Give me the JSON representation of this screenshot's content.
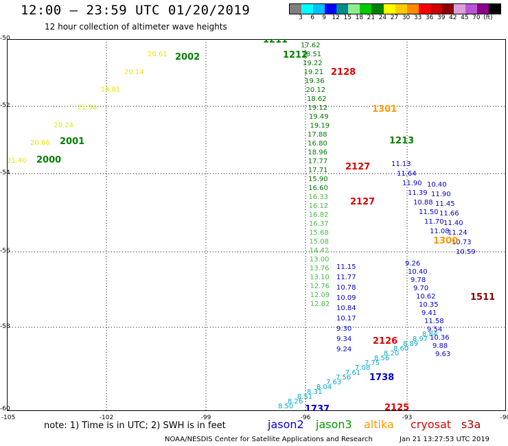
{
  "title": "12:00 – 23:59 UTC 01/20/2019",
  "subtitle": "12 hour collection of altimeter wave heights",
  "legend": {
    "colors": [
      "#808080",
      "#00ffff",
      "#00bfff",
      "#0000ff",
      "#008c8c",
      "#90ee90",
      "#00cc00",
      "#008000",
      "#ffff00",
      "#ffcc00",
      "#ff8c00",
      "#ff0000",
      "#cc0000",
      "#8b0000",
      "#dda0dd",
      "#ba55d3",
      "#8b008b",
      "#000000"
    ],
    "labels": [
      "3",
      "6",
      "9",
      "12",
      "15",
      "18",
      "21",
      "24",
      "27",
      "30",
      "33",
      "36",
      "39",
      "42",
      "45",
      "70",
      "(ft)"
    ]
  },
  "axes": {
    "y_labels": [
      "-50",
      "-52",
      "-54",
      "-56",
      "-58",
      "-60"
    ],
    "x_labels": [
      "-105",
      "-102",
      "-99",
      "-96",
      "-93",
      "-90"
    ]
  },
  "note": "note: 1) Time is in UTC; 2) SWH is in feet",
  "satellites": [
    {
      "name": "jason2",
      "color": "#0000cc"
    },
    {
      "name": "jason3",
      "color": "#009900"
    },
    {
      "name": "altika",
      "color": "#ff9900"
    },
    {
      "name": "cryosat",
      "color": "#dd0000"
    },
    {
      "name": "s3a",
      "color": "#aa0000"
    }
  ],
  "credit": "NOAA/NESDIS Center for Satellite Applications and Research",
  "timestamp": "Jan 21 13:27:53 UTC 2019",
  "tracks": [
    {
      "name": "altika-track-2000-2002",
      "color": "#e6e600",
      "time_labels": [
        {
          "text": "2002",
          "color": "#008000"
        },
        {
          "text": "2001",
          "color": "#008000"
        },
        {
          "text": "2000",
          "color": "#008000"
        }
      ],
      "values": [
        "20.61",
        "20.14",
        "19.81",
        "21.38",
        "20.24",
        "20.66",
        "21.40"
      ]
    },
    {
      "name": "jason3-track-1211-1213",
      "color": "#33aa33",
      "time_labels": [
        {
          "text": "1211",
          "color": "#008000"
        },
        {
          "text": "1212",
          "color": "#008000"
        },
        {
          "text": "1213",
          "color": "#008000"
        }
      ],
      "values": [
        "17.62",
        "18.51",
        "19.22",
        "19.21",
        "19.36",
        "20.12",
        "18.62",
        "19.12",
        "19.49",
        "19.19",
        "17.88",
        "16.80",
        "18.96",
        "17.77",
        "17.71",
        "15.90",
        "16.60",
        "16.33",
        "16.12",
        "16.82",
        "16.37",
        "15.68",
        "15.08",
        "14.42",
        "13.00",
        "13.76",
        "13.10",
        "12.76",
        "12.09",
        "12.82"
      ]
    },
    {
      "name": "jason2-track-1737-1738",
      "color": "#0000cc",
      "time_labels": [
        {
          "text": "1738",
          "color": "#0000cc"
        },
        {
          "text": "1737",
          "color": "#0000cc"
        }
      ],
      "values": [
        "11.15",
        "11.77",
        "10.78",
        "10.09",
        "10.84",
        "10.17",
        "9.30",
        "9.34",
        "9.24",
        "11.13",
        "11.64",
        "11.90",
        "11.39",
        "10.88",
        "11.50",
        "11.70",
        "11.08",
        "10.40",
        "11.90",
        "11.45",
        "11.66",
        "11.40",
        "11.24",
        "10.73",
        "10.59",
        "9.26",
        "10.40",
        "9.78",
        "9.70",
        "10.62",
        "10.35",
        "9.41",
        "11.58",
        "9.54",
        "10.36",
        "9.88",
        "9.63"
      ]
    },
    {
      "name": "cryosat-labels",
      "color": "#dd0000",
      "time_labels": [
        {
          "text": "2128",
          "color": "#dd0000"
        },
        {
          "text": "2127",
          "color": "#dd0000"
        },
        {
          "text": "2127",
          "color": "#dd0000"
        },
        {
          "text": "2126",
          "color": "#dd0000"
        },
        {
          "text": "2125",
          "color": "#dd0000"
        }
      ],
      "values": []
    },
    {
      "name": "altika-labels",
      "color": "#ff9900",
      "time_labels": [
        {
          "text": "1301",
          "color": "#ff9900"
        },
        {
          "text": "1300",
          "color": "#ff9900"
        }
      ],
      "values": []
    },
    {
      "name": "s3a-labels",
      "color": "#8b0000",
      "time_labels": [
        {
          "text": "1511",
          "color": "#8b0000"
        }
      ],
      "values": []
    },
    {
      "name": "cyan-values",
      "color": "#00aacc",
      "time_labels": [],
      "values": [
        "8.50",
        "8.26",
        "8.51",
        "8.31",
        "8.04",
        "7.63",
        "7.56",
        "7.61",
        "7.08",
        "7.75",
        "8.56",
        "8.20",
        "8.60",
        "8.89",
        "8.97",
        "8.84"
      ]
    }
  ]
}
